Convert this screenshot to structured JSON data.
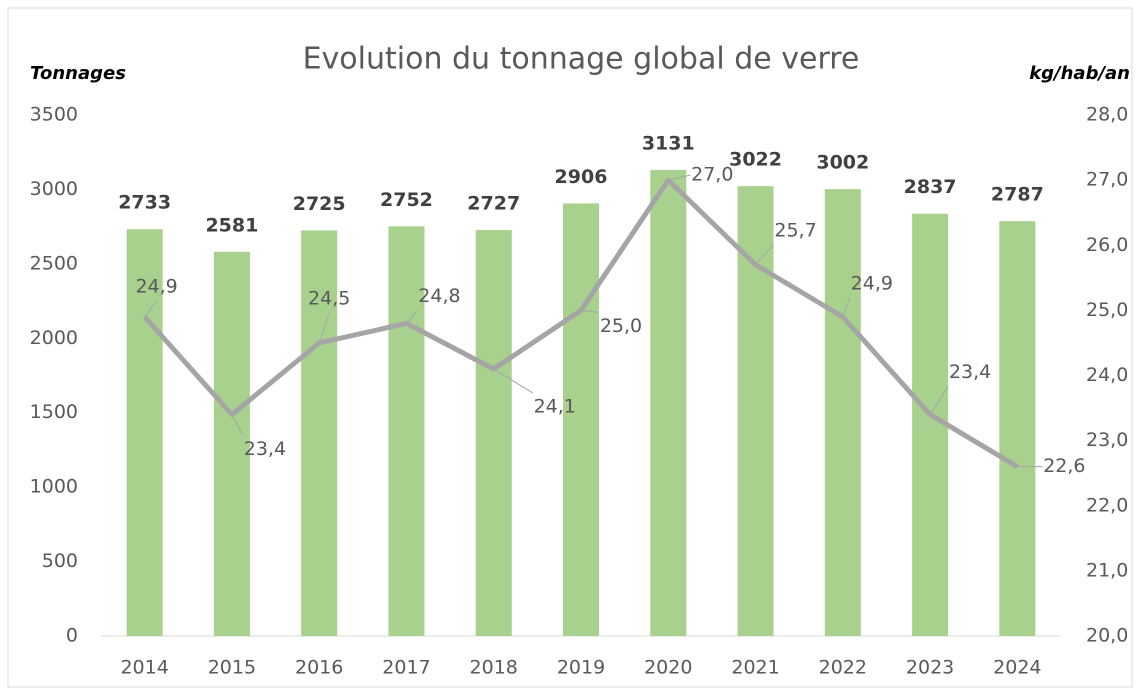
{
  "chart_data": {
    "type": "bar",
    "title": "Evolution du tonnage global de verre",
    "ylabel": "Tonnages",
    "y2label": "kg/hab/an",
    "categories": [
      "2014",
      "2015",
      "2016",
      "2017",
      "2018",
      "2019",
      "2020",
      "2021",
      "2022",
      "2023",
      "2024"
    ],
    "series": [
      {
        "type": "bar",
        "color": "#a9d18e",
        "values": [
          2733,
          2581,
          2725,
          2752,
          2727,
          2906,
          3131,
          3022,
          3002,
          2837,
          2787
        ]
      },
      {
        "type": "line",
        "axis": "y2",
        "color": "#a5a5a5",
        "values": [
          24.9,
          23.4,
          24.5,
          24.8,
          24.1,
          25.0,
          27.0,
          25.7,
          24.9,
          23.4,
          22.6
        ],
        "value_labels": [
          "24,9",
          "23,4",
          "24,5",
          "24,8",
          "24,1",
          "25,0",
          "27,0",
          "25,7",
          "24,9",
          "23,4",
          "22,6"
        ]
      }
    ],
    "ylim": [
      0,
      3500
    ],
    "yticks": [
      0,
      500,
      1000,
      1500,
      2000,
      2500,
      3000,
      3500
    ],
    "y2lim": [
      20,
      28
    ],
    "y2ticks": [
      {
        "value": 20,
        "label": "20,0"
      },
      {
        "value": 21,
        "label": "21,0"
      },
      {
        "value": 22,
        "label": "22,0"
      },
      {
        "value": 23,
        "label": "23,0"
      },
      {
        "value": 24,
        "label": "24,0"
      },
      {
        "value": 25,
        "label": "25,0"
      },
      {
        "value": 26,
        "label": "26,0"
      },
      {
        "value": 27,
        "label": "27,0"
      },
      {
        "value": 28,
        "label": "28,0"
      }
    ],
    "grid": false
  }
}
